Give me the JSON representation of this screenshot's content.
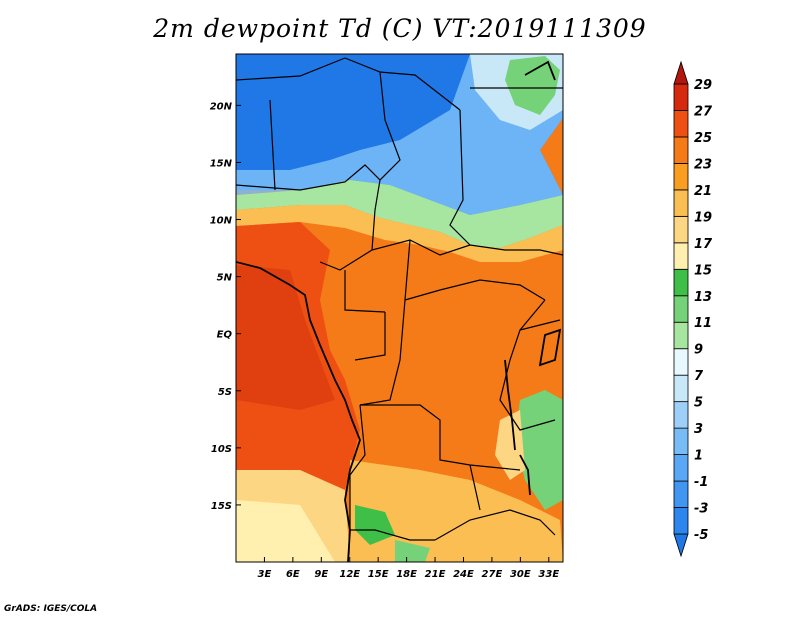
{
  "title": "2m dewpoint Td (C) VT:2019111309",
  "credit": "GrADS: IGES/COLA",
  "map": {
    "lon_range": [
      0,
      34.5
    ],
    "lat_range": [
      -20,
      24.5
    ],
    "x_ticks": [
      {
        "lon": 3,
        "label": "3E"
      },
      {
        "lon": 6,
        "label": "6E"
      },
      {
        "lon": 9,
        "label": "9E"
      },
      {
        "lon": 12,
        "label": "12E"
      },
      {
        "lon": 15,
        "label": "15E"
      },
      {
        "lon": 18,
        "label": "18E"
      },
      {
        "lon": 21,
        "label": "21E"
      },
      {
        "lon": 24,
        "label": "24E"
      },
      {
        "lon": 27,
        "label": "27E"
      },
      {
        "lon": 30,
        "label": "30E"
      },
      {
        "lon": 33,
        "label": "33E"
      }
    ],
    "y_ticks": [
      {
        "lat": 20,
        "label": "20N"
      },
      {
        "lat": 15,
        "label": "15N"
      },
      {
        "lat": 10,
        "label": "10N"
      },
      {
        "lat": 5,
        "label": "5N"
      },
      {
        "lat": 0,
        "label": "EQ"
      },
      {
        "lat": -5,
        "label": "5S"
      },
      {
        "lat": -10,
        "label": "10S"
      },
      {
        "lat": -15,
        "label": "15S"
      }
    ]
  },
  "colorbar": {
    "labels": [
      "-5",
      "-3",
      "-1",
      "1",
      "3",
      "5",
      "7",
      "9",
      "11",
      "13",
      "15",
      "17",
      "19",
      "21",
      "23",
      "25",
      "27",
      "29"
    ],
    "colors": [
      "#1f78e6",
      "#2d86ee",
      "#4196f2",
      "#5aa8f5",
      "#78bcf6",
      "#9ed0f7",
      "#c8e8f8",
      "#e8f8ff",
      "#a6e6a0",
      "#76d278",
      "#3fbe48",
      "#fff0b0",
      "#fdd684",
      "#fbbe52",
      "#f99e20",
      "#f57a18",
      "#ee5014",
      "#d62a0e",
      "#b2160c"
    ]
  }
}
